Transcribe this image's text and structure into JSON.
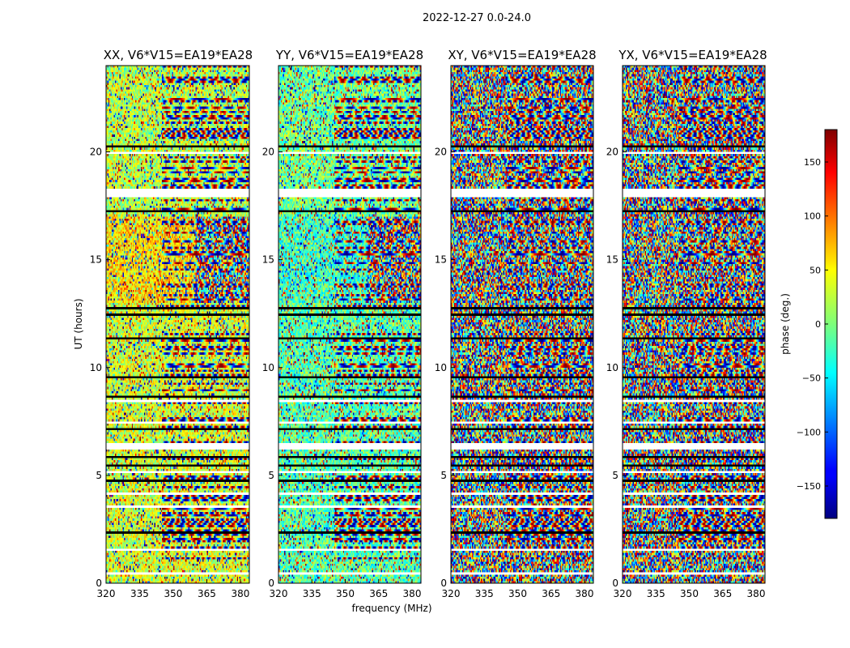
{
  "figure": {
    "suptitle": "2022-12-27 0.0-24.0",
    "colormap": "jet",
    "colorbar": {
      "label": "phase (deg.)",
      "range": [
        -180,
        180
      ],
      "ticks": [
        "150",
        "100",
        "50",
        "0",
        "−50",
        "−100",
        "−150"
      ],
      "tick_values": [
        150,
        100,
        50,
        0,
        -50,
        -100,
        -150
      ]
    }
  },
  "chart_data": [
    {
      "type": "heatmap",
      "title": "XX, V6*V15=EA19*EA28",
      "xlabel": "",
      "ylabel": "UT (hours)",
      "xlim": [
        320,
        384
      ],
      "ylim": [
        0,
        24
      ],
      "xticks": [
        "320",
        "335",
        "350",
        "365",
        "380"
      ],
      "yticks": [
        "0",
        "5",
        "10",
        "15",
        "20"
      ],
      "value_range": [
        -180,
        180
      ],
      "mean_phase_by_band": [
        {
          "ut": [
            13,
            17
          ],
          "freq": [
            320,
            360
          ],
          "phase": 55
        },
        {
          "ut": [
            0,
            13
          ],
          "freq": [
            320,
            384
          ],
          "phase": 30
        },
        {
          "ut": [
            17,
            24
          ],
          "freq": [
            320,
            384
          ],
          "phase": 20
        }
      ]
    },
    {
      "type": "heatmap",
      "title": "YY, V6*V15=EA19*EA28",
      "xlabel": "frequency (MHz)",
      "ylabel": "",
      "xlim": [
        320,
        384
      ],
      "ylim": [
        0,
        24
      ],
      "xticks": [
        "320",
        "335",
        "350",
        "365",
        "380"
      ],
      "yticks": [
        "0",
        "5",
        "10",
        "15",
        "20"
      ],
      "value_range": [
        -180,
        180
      ],
      "mean_phase_by_band": [
        {
          "ut": [
            13,
            17
          ],
          "freq": [
            320,
            360
          ],
          "phase": -25
        },
        {
          "ut": [
            0,
            13
          ],
          "freq": [
            320,
            384
          ],
          "phase": -15
        },
        {
          "ut": [
            17,
            24
          ],
          "freq": [
            320,
            384
          ],
          "phase": -5
        }
      ]
    },
    {
      "type": "heatmap",
      "title": "XY, V6*V15=EA19*EA28",
      "xlabel": "",
      "ylabel": "",
      "xlim": [
        320,
        384
      ],
      "ylim": [
        0,
        24
      ],
      "xticks": [
        "320",
        "335",
        "350",
        "365",
        "380"
      ],
      "yticks": [
        "0",
        "5",
        "10",
        "15",
        "20"
      ],
      "value_range": [
        -180,
        180
      ],
      "mean_phase_by_band": []
    },
    {
      "type": "heatmap",
      "title": "YX, V6*V15=EA19*EA28",
      "xlabel": "",
      "ylabel": "",
      "xlim": [
        320,
        384
      ],
      "ylim": [
        0,
        24
      ],
      "xticks": [
        "320",
        "335",
        "350",
        "365",
        "380"
      ],
      "yticks": [
        "0",
        "5",
        "10",
        "15",
        "20"
      ],
      "value_range": [
        -180,
        180
      ],
      "mean_phase_by_band": []
    }
  ],
  "flagged_ut_bands": [
    [
      0.4,
      0.5
    ],
    [
      1.5,
      1.6
    ],
    [
      3.5,
      3.6
    ],
    [
      4.1,
      4.2
    ],
    [
      5.1,
      5.2
    ],
    [
      6.2,
      6.55
    ],
    [
      7.4,
      7.5
    ],
    [
      8.4,
      8.5
    ],
    [
      17.9,
      18.3
    ],
    [
      19.9,
      20.0
    ]
  ]
}
